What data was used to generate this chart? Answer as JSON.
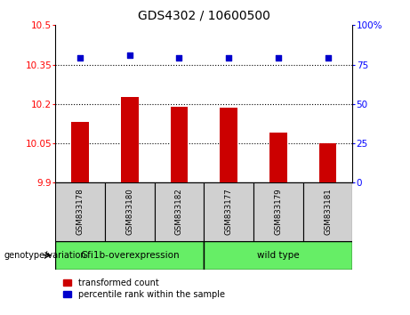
{
  "title": "GDS4302 / 10600500",
  "samples": [
    "GSM833178",
    "GSM833180",
    "GSM833182",
    "GSM833177",
    "GSM833179",
    "GSM833181"
  ],
  "bar_values": [
    10.13,
    10.225,
    10.19,
    10.185,
    10.09,
    10.05
  ],
  "percentile_values": [
    79,
    81,
    79,
    79,
    79,
    79
  ],
  "bar_color": "#cc0000",
  "dot_color": "#0000cc",
  "ylim_left": [
    9.9,
    10.5
  ],
  "ylim_right": [
    0,
    100
  ],
  "yticks_left": [
    9.9,
    10.05,
    10.2,
    10.35,
    10.5
  ],
  "ytick_labels_left": [
    "9.9",
    "10.05",
    "10.2",
    "10.35",
    "10.5"
  ],
  "yticks_right": [
    0,
    25,
    50,
    75,
    100
  ],
  "ytick_labels_right": [
    "0",
    "25",
    "50",
    "75",
    "100%"
  ],
  "grid_values": [
    10.05,
    10.2,
    10.35
  ],
  "genotype_labels": [
    "Gfi1b-overexpression",
    "wild type"
  ],
  "genotype_color": "#66ee66",
  "background_samples": "#d0d0d0",
  "legend_red_label": "transformed count",
  "legend_blue_label": "percentile rank within the sample",
  "genotype_text": "genotype/variation",
  "bar_width": 0.35
}
